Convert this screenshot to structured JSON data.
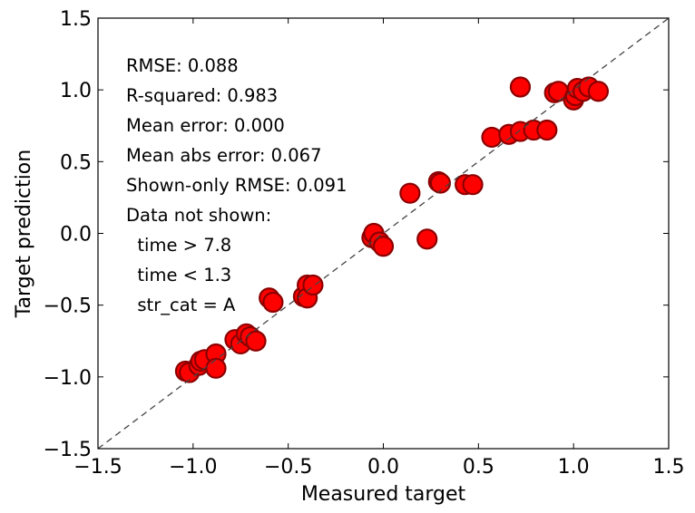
{
  "chart_data": {
    "type": "scatter",
    "xlabel": "Measured target",
    "ylabel": "Target prediction",
    "xlim": [
      -1.5,
      1.5
    ],
    "ylim": [
      -1.5,
      1.5
    ],
    "x_ticks": [
      "−1.5",
      "−1.0",
      "−0.5",
      "0.0",
      "0.5",
      "1.0",
      "1.5"
    ],
    "y_ticks": [
      "−1.5",
      "−1.0",
      "−0.5",
      "0.0",
      "0.5",
      "1.0",
      "1.5"
    ],
    "grid": false,
    "reference_line": "dashed y = x",
    "marker_color": "#ff0000",
    "marker_edge_color": "#8b0000",
    "annotations": [
      "RMSE: 0.088",
      "R-squared: 0.983",
      "Mean error: 0.000",
      "Mean abs error: 0.067",
      "Shown-only RMSE: 0.091",
      "Data not shown:",
      "  time > 7.8",
      "  time < 1.3",
      "  str_cat = A"
    ],
    "points": [
      {
        "x": -1.04,
        "y": -0.96
      },
      {
        "x": -1.02,
        "y": -0.97
      },
      {
        "x": -0.97,
        "y": -0.92
      },
      {
        "x": -0.96,
        "y": -0.89
      },
      {
        "x": -0.94,
        "y": -0.88
      },
      {
        "x": -0.88,
        "y": -0.84
      },
      {
        "x": -0.88,
        "y": -0.94
      },
      {
        "x": -0.78,
        "y": -0.74
      },
      {
        "x": -0.75,
        "y": -0.77
      },
      {
        "x": -0.72,
        "y": -0.7
      },
      {
        "x": -0.7,
        "y": -0.72
      },
      {
        "x": -0.67,
        "y": -0.75
      },
      {
        "x": -0.6,
        "y": -0.45
      },
      {
        "x": -0.58,
        "y": -0.48
      },
      {
        "x": -0.42,
        "y": -0.44
      },
      {
        "x": -0.4,
        "y": -0.36
      },
      {
        "x": -0.4,
        "y": -0.45
      },
      {
        "x": -0.37,
        "y": -0.36
      },
      {
        "x": -0.06,
        "y": -0.03
      },
      {
        "x": -0.05,
        "y": 0.0
      },
      {
        "x": -0.02,
        "y": -0.06
      },
      {
        "x": 0.0,
        "y": -0.09
      },
      {
        "x": 0.14,
        "y": 0.28
      },
      {
        "x": 0.23,
        "y": -0.04
      },
      {
        "x": 0.29,
        "y": 0.36
      },
      {
        "x": 0.3,
        "y": 0.35
      },
      {
        "x": 0.43,
        "y": 0.34
      },
      {
        "x": 0.47,
        "y": 0.34
      },
      {
        "x": 0.57,
        "y": 0.67
      },
      {
        "x": 0.66,
        "y": 0.69
      },
      {
        "x": 0.72,
        "y": 0.71
      },
      {
        "x": 0.72,
        "y": 1.02
      },
      {
        "x": 0.79,
        "y": 0.72
      },
      {
        "x": 0.86,
        "y": 0.72
      },
      {
        "x": 0.9,
        "y": 0.98
      },
      {
        "x": 0.92,
        "y": 0.99
      },
      {
        "x": 1.0,
        "y": 0.93
      },
      {
        "x": 1.01,
        "y": 0.96
      },
      {
        "x": 1.02,
        "y": 1.01
      },
      {
        "x": 1.05,
        "y": 0.99
      },
      {
        "x": 1.08,
        "y": 1.02
      },
      {
        "x": 1.13,
        "y": 0.99
      }
    ]
  }
}
